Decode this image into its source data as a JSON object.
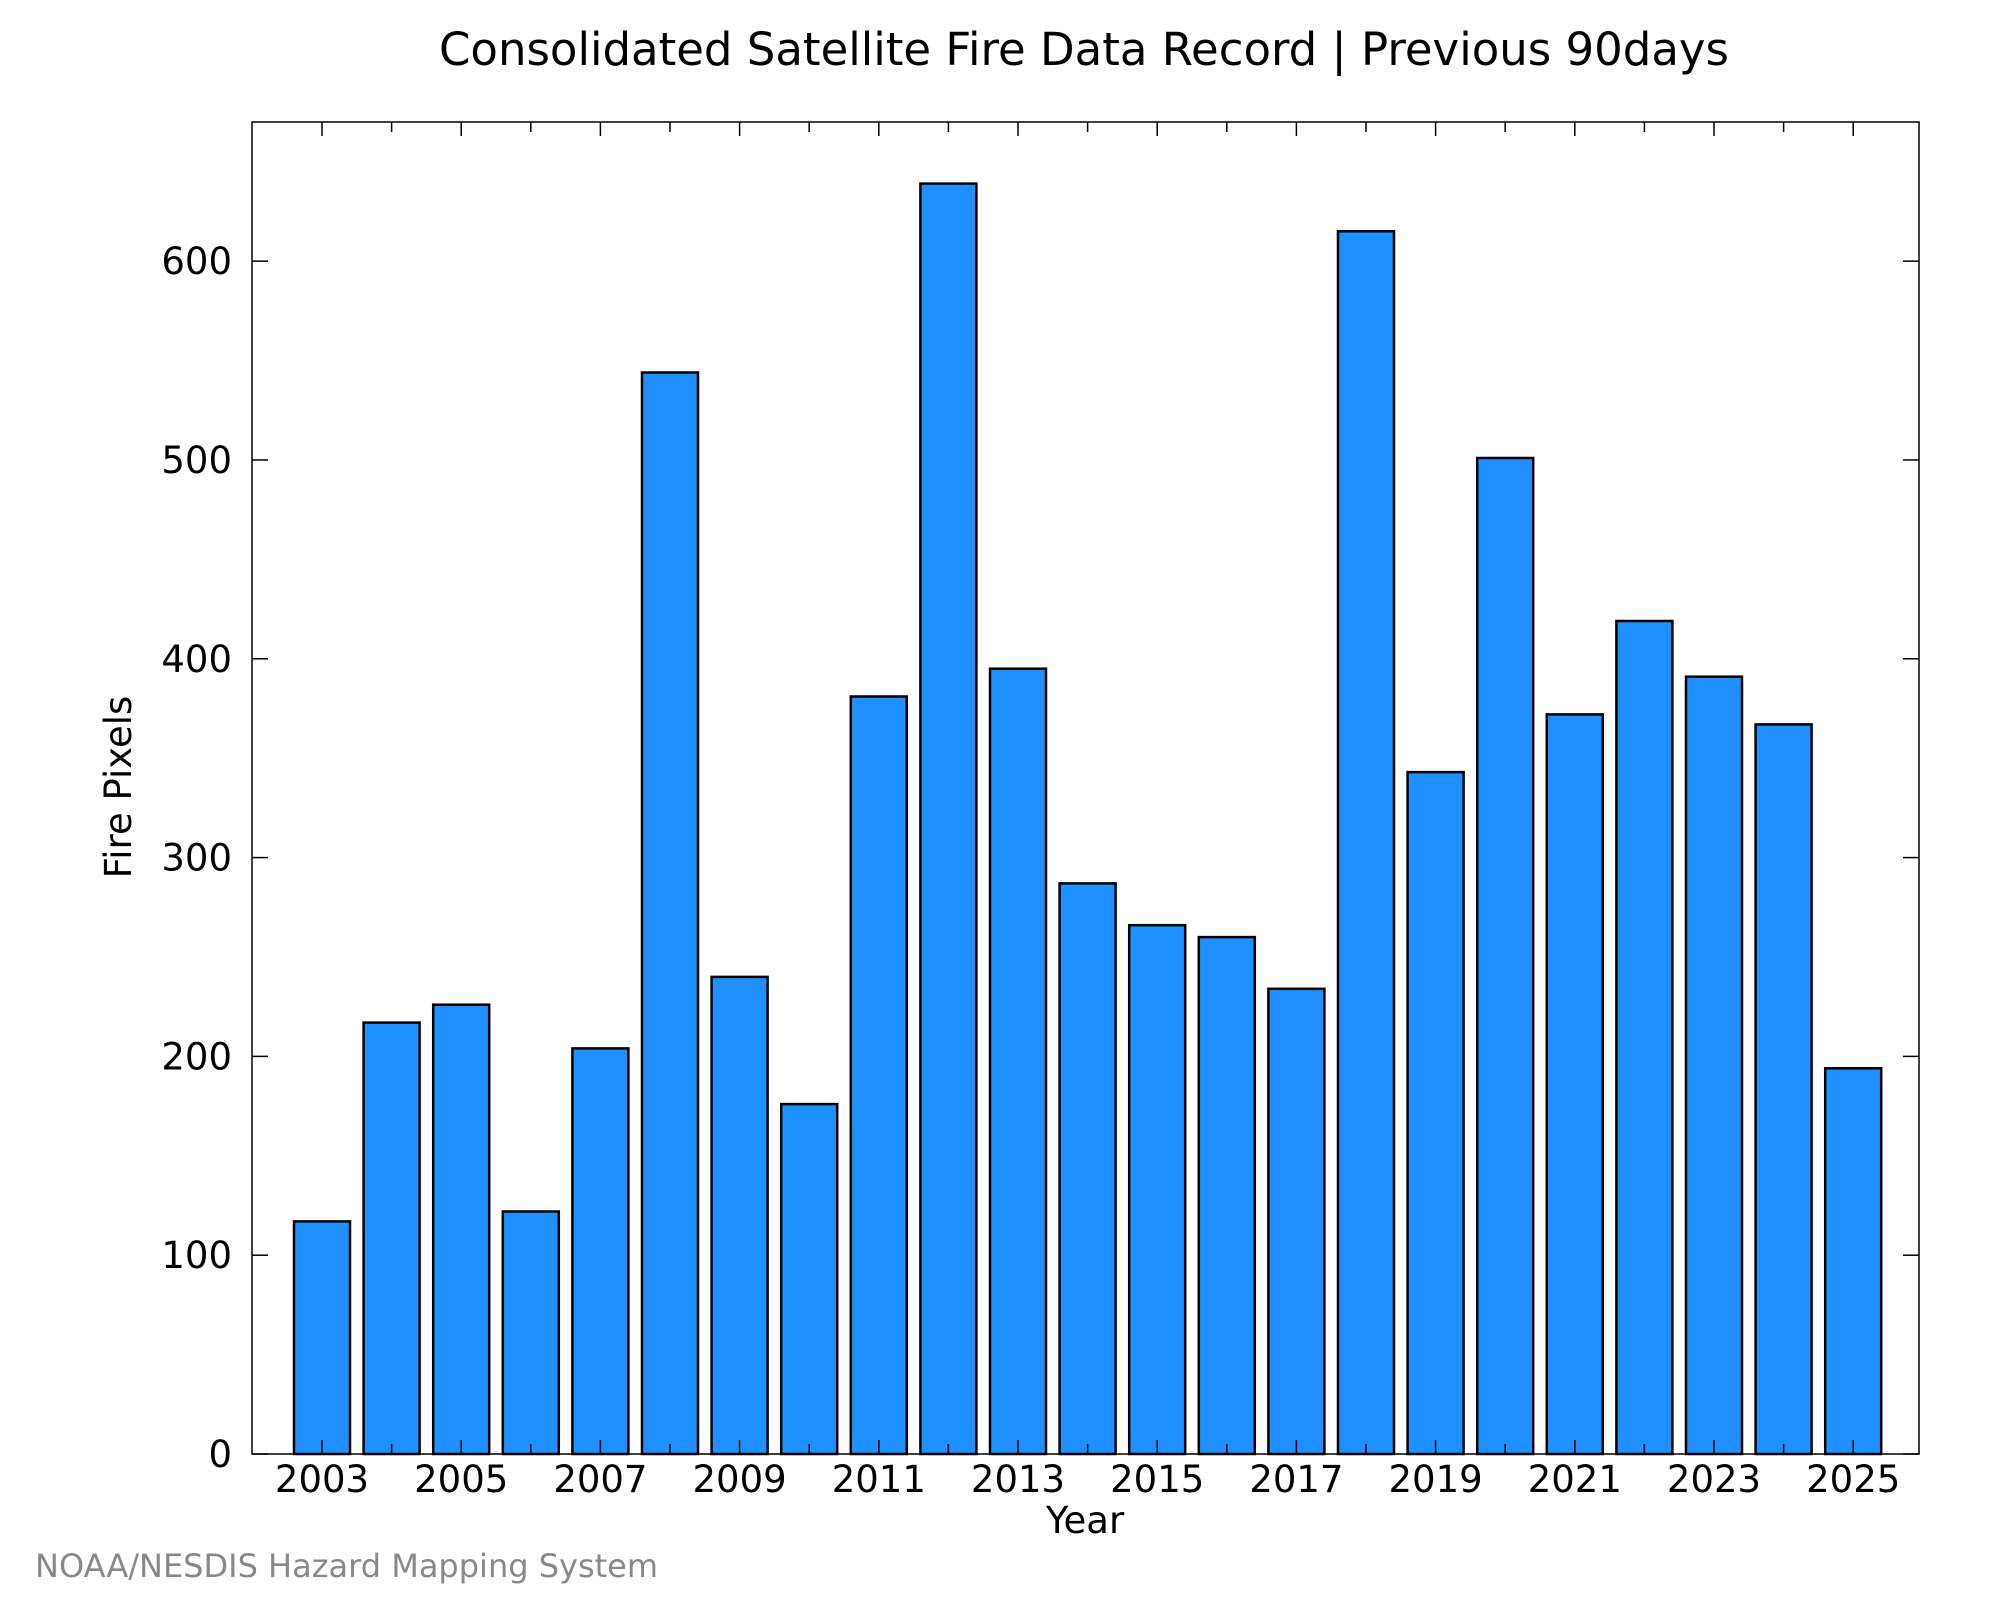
{
  "footer": {
    "credit": "NOAA/NESDIS Hazard Mapping System"
  },
  "colors": {
    "bar_fill": "#1E90FF",
    "bar_stroke": "#000000",
    "axis": "#000000",
    "credit_text": "#888888"
  },
  "chart_data": {
    "type": "bar",
    "title": "Consolidated Satellite Fire Data Record | Previous 90days",
    "xlabel": "Year",
    "ylabel": "Fire Pixels",
    "categories": [
      "2003",
      "2004",
      "2005",
      "2006",
      "2007",
      "2008",
      "2009",
      "2010",
      "2011",
      "2012",
      "2013",
      "2014",
      "2015",
      "2016",
      "2017",
      "2018",
      "2019",
      "2020",
      "2021",
      "2022",
      "2023",
      "2024",
      "2025"
    ],
    "values": [
      117,
      217,
      226,
      122,
      204,
      544,
      240,
      176,
      381,
      639,
      395,
      287,
      266,
      260,
      234,
      615,
      343,
      501,
      372,
      419,
      391,
      367,
      194
    ],
    "x_tick_labels": [
      "2003",
      "2005",
      "2007",
      "2009",
      "2011",
      "2013",
      "2015",
      "2017",
      "2019",
      "2021",
      "2023",
      "2025"
    ],
    "y_ticks": [
      0,
      100,
      200,
      300,
      400,
      500,
      600
    ],
    "ylim": [
      0,
      670
    ],
    "grid": false,
    "legend": "none"
  }
}
